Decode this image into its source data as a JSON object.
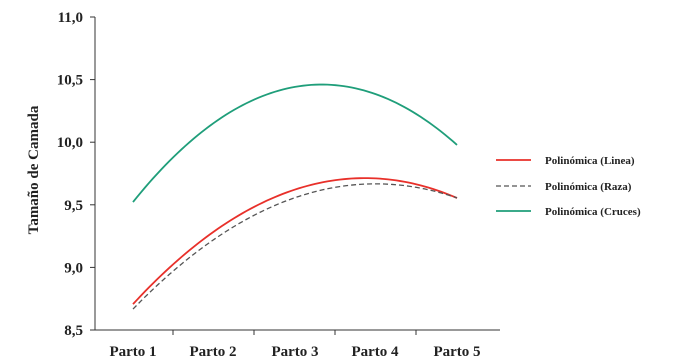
{
  "chart_data": {
    "type": "line",
    "title": "",
    "xlabel": "",
    "ylabel": "Tamaño de Camada",
    "ylim": [
      8.5,
      11.0
    ],
    "yticks": [
      "8,5",
      "9,0",
      "9,5",
      "10,0",
      "10,5",
      "11,0"
    ],
    "categories": [
      "Parto 1",
      "Parto 2",
      "Parto 3",
      "Parto 4",
      "Parto 5"
    ],
    "grid": false,
    "legend_position": "right",
    "series": [
      {
        "name": "Polinómica (Linea)",
        "color": "#e8302a",
        "dash": "solid",
        "values": [
          8.7,
          9.3,
          9.62,
          9.7,
          9.56
        ]
      },
      {
        "name": "Polinómica (Raza)",
        "color": "#555555",
        "dash": "dashed",
        "values": [
          8.66,
          9.24,
          9.55,
          9.66,
          9.56
        ]
      },
      {
        "name": "Polinómica (Cruces)",
        "color": "#1f9e7a",
        "dash": "solid",
        "values": [
          9.52,
          10.16,
          10.44,
          10.38,
          9.98
        ]
      }
    ]
  }
}
